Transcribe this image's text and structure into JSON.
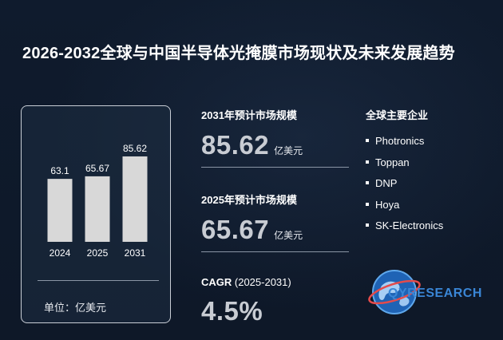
{
  "title": "2026-2032全球与中国半导体光掩膜市场现状及未来发展趋势",
  "chart_data": {
    "type": "bar",
    "categories": [
      "2024",
      "2025",
      "2031"
    ],
    "values": [
      63.1,
      65.67,
      85.62
    ],
    "value_labels": [
      "63.1",
      "65.67",
      "85.62"
    ],
    "ylim": [
      0,
      100
    ],
    "unit_label": "单位：亿美元",
    "bar_color": "#d8d8d8"
  },
  "metrics": [
    {
      "label": "2031年预计市场规模",
      "value": "85.62",
      "unit": "亿美元"
    },
    {
      "label": "2025年预计市场规模",
      "value": "65.67",
      "unit": "亿美元"
    },
    {
      "label_bold": "CAGR",
      "label_rest": " (2025-2031)",
      "value": "4.5%"
    }
  ],
  "companies": {
    "title": "全球主要企业",
    "items": [
      "Photronics",
      "Toppan",
      "DNP",
      "Hoya",
      "SK-Electronics"
    ]
  },
  "logo": {
    "text": "QYRESEARCH",
    "icon": "globe-icon",
    "color": "#3a86d6"
  },
  "colors": {
    "background": "#0f1a2c",
    "accent": "#3a86d6",
    "value_text": "#c8ccd3"
  }
}
